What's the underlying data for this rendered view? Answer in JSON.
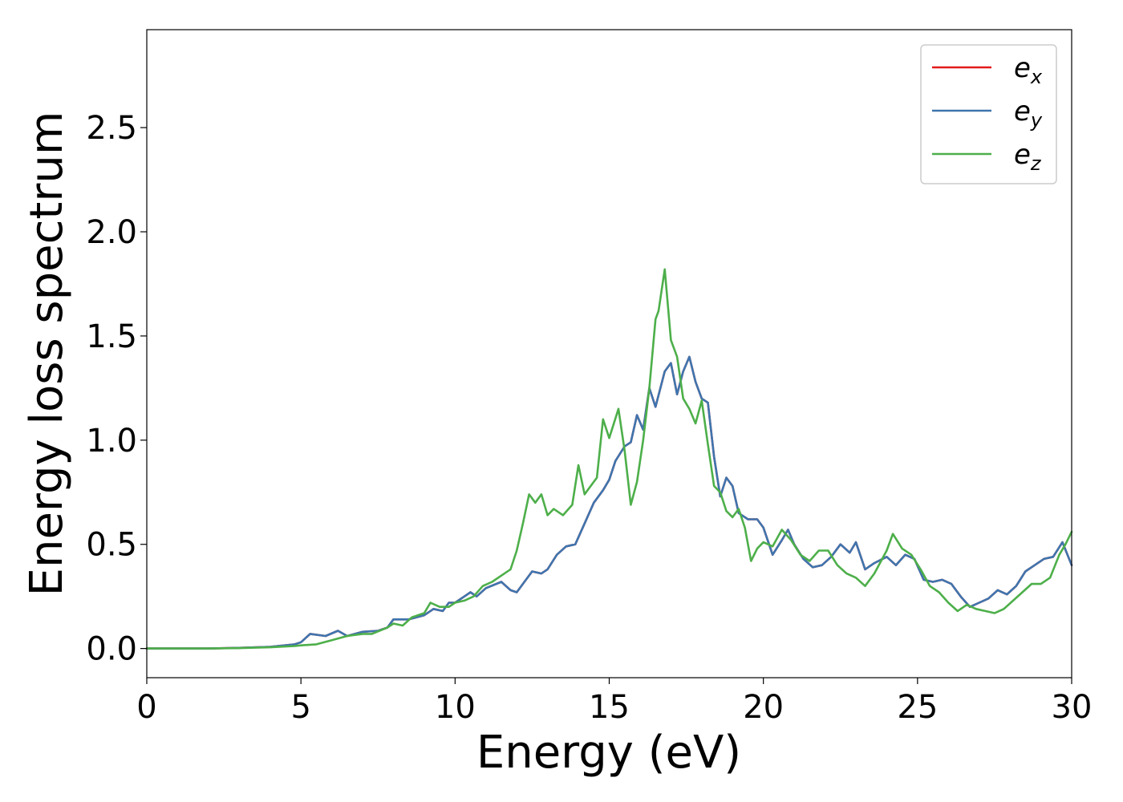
{
  "chart_data": {
    "type": "line",
    "title": "",
    "xlabel": "Energy (eV)",
    "ylabel": "Energy loss spectrum",
    "xlim": [
      0,
      30
    ],
    "ylim": [
      -0.14,
      2.97
    ],
    "xticks": [
      0,
      5,
      10,
      15,
      20,
      25,
      30
    ],
    "xtick_labels": [
      "0",
      "5",
      "10",
      "15",
      "20",
      "25",
      "30"
    ],
    "yticks": [
      0.0,
      0.5,
      1.0,
      1.5,
      2.0,
      2.5
    ],
    "ytick_labels": [
      "0.0",
      "0.5",
      "1.0",
      "1.5",
      "2.0",
      "2.5"
    ],
    "grid": false,
    "legend_position": "top-right",
    "series": [
      {
        "name": "e_x",
        "label_main": "e",
        "label_sub": "x",
        "color": "#e41a1c",
        "points": [
          [
            0,
            0.0
          ],
          [
            2,
            0.0
          ],
          [
            3,
            0.003
          ],
          [
            4,
            0.008
          ],
          [
            4.8,
            0.02
          ],
          [
            5.0,
            0.03
          ],
          [
            5.3,
            0.07
          ],
          [
            5.8,
            0.06
          ],
          [
            6.2,
            0.085
          ],
          [
            6.5,
            0.06
          ],
          [
            7.0,
            0.08
          ],
          [
            7.5,
            0.085
          ],
          [
            7.8,
            0.1
          ],
          [
            8.0,
            0.14
          ],
          [
            8.5,
            0.14
          ],
          [
            9.0,
            0.16
          ],
          [
            9.3,
            0.19
          ],
          [
            9.6,
            0.18
          ],
          [
            9.8,
            0.22
          ],
          [
            10.0,
            0.22
          ],
          [
            10.3,
            0.25
          ],
          [
            10.5,
            0.27
          ],
          [
            10.7,
            0.25
          ],
          [
            11.0,
            0.29
          ],
          [
            11.5,
            0.32
          ],
          [
            11.8,
            0.28
          ],
          [
            12.0,
            0.27
          ],
          [
            12.3,
            0.33
          ],
          [
            12.5,
            0.37
          ],
          [
            12.8,
            0.36
          ],
          [
            13.0,
            0.38
          ],
          [
            13.3,
            0.45
          ],
          [
            13.6,
            0.49
          ],
          [
            13.9,
            0.5
          ],
          [
            14.2,
            0.6
          ],
          [
            14.5,
            0.7
          ],
          [
            14.8,
            0.76
          ],
          [
            15.0,
            0.81
          ],
          [
            15.2,
            0.9
          ],
          [
            15.5,
            0.97
          ],
          [
            15.7,
            0.99
          ],
          [
            15.9,
            1.12
          ],
          [
            16.1,
            1.05
          ],
          [
            16.3,
            1.25
          ],
          [
            16.5,
            1.16
          ],
          [
            16.8,
            1.33
          ],
          [
            17.0,
            1.37
          ],
          [
            17.2,
            1.22
          ],
          [
            17.4,
            1.33
          ],
          [
            17.6,
            1.4
          ],
          [
            17.8,
            1.28
          ],
          [
            18.0,
            1.2
          ],
          [
            18.2,
            1.18
          ],
          [
            18.4,
            0.92
          ],
          [
            18.6,
            0.73
          ],
          [
            18.8,
            0.82
          ],
          [
            19.0,
            0.78
          ],
          [
            19.2,
            0.65
          ],
          [
            19.5,
            0.62
          ],
          [
            19.8,
            0.62
          ],
          [
            20.0,
            0.58
          ],
          [
            20.3,
            0.45
          ],
          [
            20.6,
            0.52
          ],
          [
            20.8,
            0.57
          ],
          [
            21.0,
            0.5
          ],
          [
            21.3,
            0.43
          ],
          [
            21.6,
            0.39
          ],
          [
            21.9,
            0.4
          ],
          [
            22.2,
            0.44
          ],
          [
            22.5,
            0.5
          ],
          [
            22.8,
            0.46
          ],
          [
            23.0,
            0.51
          ],
          [
            23.3,
            0.38
          ],
          [
            23.6,
            0.41
          ],
          [
            24.0,
            0.44
          ],
          [
            24.3,
            0.4
          ],
          [
            24.6,
            0.45
          ],
          [
            24.9,
            0.43
          ],
          [
            25.2,
            0.33
          ],
          [
            25.5,
            0.32
          ],
          [
            25.8,
            0.33
          ],
          [
            26.1,
            0.31
          ],
          [
            26.4,
            0.25
          ],
          [
            26.7,
            0.2
          ],
          [
            27.0,
            0.22
          ],
          [
            27.3,
            0.24
          ],
          [
            27.6,
            0.28
          ],
          [
            27.9,
            0.26
          ],
          [
            28.2,
            0.3
          ],
          [
            28.5,
            0.37
          ],
          [
            28.8,
            0.4
          ],
          [
            29.1,
            0.43
          ],
          [
            29.4,
            0.44
          ],
          [
            29.7,
            0.51
          ],
          [
            30.0,
            0.4
          ]
        ]
      },
      {
        "name": "e_y",
        "label_main": "e",
        "label_sub": "y",
        "color": "#3e75ae",
        "points": [
          [
            0,
            0.0
          ],
          [
            2,
            0.0
          ],
          [
            3,
            0.003
          ],
          [
            4,
            0.008
          ],
          [
            4.8,
            0.02
          ],
          [
            5.0,
            0.03
          ],
          [
            5.3,
            0.07
          ],
          [
            5.8,
            0.06
          ],
          [
            6.2,
            0.085
          ],
          [
            6.5,
            0.06
          ],
          [
            7.0,
            0.08
          ],
          [
            7.5,
            0.085
          ],
          [
            7.8,
            0.1
          ],
          [
            8.0,
            0.14
          ],
          [
            8.5,
            0.14
          ],
          [
            9.0,
            0.16
          ],
          [
            9.3,
            0.19
          ],
          [
            9.6,
            0.18
          ],
          [
            9.8,
            0.22
          ],
          [
            10.0,
            0.22
          ],
          [
            10.3,
            0.25
          ],
          [
            10.5,
            0.27
          ],
          [
            10.7,
            0.25
          ],
          [
            11.0,
            0.29
          ],
          [
            11.5,
            0.32
          ],
          [
            11.8,
            0.28
          ],
          [
            12.0,
            0.27
          ],
          [
            12.3,
            0.33
          ],
          [
            12.5,
            0.37
          ],
          [
            12.8,
            0.36
          ],
          [
            13.0,
            0.38
          ],
          [
            13.3,
            0.45
          ],
          [
            13.6,
            0.49
          ],
          [
            13.9,
            0.5
          ],
          [
            14.2,
            0.6
          ],
          [
            14.5,
            0.7
          ],
          [
            14.8,
            0.76
          ],
          [
            15.0,
            0.81
          ],
          [
            15.2,
            0.9
          ],
          [
            15.5,
            0.97
          ],
          [
            15.7,
            0.99
          ],
          [
            15.9,
            1.12
          ],
          [
            16.1,
            1.05
          ],
          [
            16.3,
            1.25
          ],
          [
            16.5,
            1.16
          ],
          [
            16.8,
            1.33
          ],
          [
            17.0,
            1.37
          ],
          [
            17.2,
            1.22
          ],
          [
            17.4,
            1.33
          ],
          [
            17.6,
            1.4
          ],
          [
            17.8,
            1.28
          ],
          [
            18.0,
            1.2
          ],
          [
            18.2,
            1.18
          ],
          [
            18.4,
            0.92
          ],
          [
            18.6,
            0.73
          ],
          [
            18.8,
            0.82
          ],
          [
            19.0,
            0.78
          ],
          [
            19.2,
            0.65
          ],
          [
            19.5,
            0.62
          ],
          [
            19.8,
            0.62
          ],
          [
            20.0,
            0.58
          ],
          [
            20.3,
            0.45
          ],
          [
            20.6,
            0.52
          ],
          [
            20.8,
            0.57
          ],
          [
            21.0,
            0.5
          ],
          [
            21.3,
            0.43
          ],
          [
            21.6,
            0.39
          ],
          [
            21.9,
            0.4
          ],
          [
            22.2,
            0.44
          ],
          [
            22.5,
            0.5
          ],
          [
            22.8,
            0.46
          ],
          [
            23.0,
            0.51
          ],
          [
            23.3,
            0.38
          ],
          [
            23.6,
            0.41
          ],
          [
            24.0,
            0.44
          ],
          [
            24.3,
            0.4
          ],
          [
            24.6,
            0.45
          ],
          [
            24.9,
            0.43
          ],
          [
            25.2,
            0.33
          ],
          [
            25.5,
            0.32
          ],
          [
            25.8,
            0.33
          ],
          [
            26.1,
            0.31
          ],
          [
            26.4,
            0.25
          ],
          [
            26.7,
            0.2
          ],
          [
            27.0,
            0.22
          ],
          [
            27.3,
            0.24
          ],
          [
            27.6,
            0.28
          ],
          [
            27.9,
            0.26
          ],
          [
            28.2,
            0.3
          ],
          [
            28.5,
            0.37
          ],
          [
            28.8,
            0.4
          ],
          [
            29.1,
            0.43
          ],
          [
            29.4,
            0.44
          ],
          [
            29.7,
            0.51
          ],
          [
            30.0,
            0.4
          ]
        ]
      },
      {
        "name": "e_z",
        "label_main": "e",
        "label_sub": "z",
        "color": "#4daf4a",
        "points": [
          [
            0,
            0.0
          ],
          [
            2,
            0.0
          ],
          [
            3,
            0.002
          ],
          [
            4,
            0.006
          ],
          [
            4.8,
            0.012
          ],
          [
            5.0,
            0.015
          ],
          [
            5.5,
            0.02
          ],
          [
            6.0,
            0.04
          ],
          [
            6.5,
            0.06
          ],
          [
            7.0,
            0.07
          ],
          [
            7.3,
            0.07
          ],
          [
            7.8,
            0.1
          ],
          [
            8.0,
            0.12
          ],
          [
            8.3,
            0.11
          ],
          [
            8.6,
            0.15
          ],
          [
            9.0,
            0.17
          ],
          [
            9.2,
            0.22
          ],
          [
            9.5,
            0.2
          ],
          [
            9.8,
            0.2
          ],
          [
            10.0,
            0.22
          ],
          [
            10.3,
            0.23
          ],
          [
            10.6,
            0.25
          ],
          [
            10.9,
            0.3
          ],
          [
            11.2,
            0.32
          ],
          [
            11.5,
            0.35
          ],
          [
            11.8,
            0.38
          ],
          [
            12.0,
            0.47
          ],
          [
            12.2,
            0.6
          ],
          [
            12.4,
            0.74
          ],
          [
            12.6,
            0.7
          ],
          [
            12.8,
            0.74
          ],
          [
            13.0,
            0.64
          ],
          [
            13.2,
            0.67
          ],
          [
            13.5,
            0.64
          ],
          [
            13.8,
            0.69
          ],
          [
            14.0,
            0.88
          ],
          [
            14.2,
            0.74
          ],
          [
            14.4,
            0.78
          ],
          [
            14.6,
            0.82
          ],
          [
            14.8,
            1.1
          ],
          [
            15.0,
            1.01
          ],
          [
            15.3,
            1.15
          ],
          [
            15.5,
            0.95
          ],
          [
            15.7,
            0.69
          ],
          [
            15.9,
            0.8
          ],
          [
            16.1,
            1.0
          ],
          [
            16.3,
            1.25
          ],
          [
            16.5,
            1.58
          ],
          [
            16.6,
            1.62
          ],
          [
            16.8,
            1.82
          ],
          [
            17.0,
            1.48
          ],
          [
            17.2,
            1.4
          ],
          [
            17.4,
            1.2
          ],
          [
            17.6,
            1.15
          ],
          [
            17.8,
            1.08
          ],
          [
            18.0,
            1.19
          ],
          [
            18.2,
            0.98
          ],
          [
            18.4,
            0.78
          ],
          [
            18.6,
            0.75
          ],
          [
            18.8,
            0.66
          ],
          [
            19.0,
            0.63
          ],
          [
            19.2,
            0.67
          ],
          [
            19.4,
            0.58
          ],
          [
            19.6,
            0.42
          ],
          [
            19.8,
            0.48
          ],
          [
            20.0,
            0.51
          ],
          [
            20.3,
            0.49
          ],
          [
            20.6,
            0.57
          ],
          [
            20.9,
            0.52
          ],
          [
            21.2,
            0.45
          ],
          [
            21.5,
            0.42
          ],
          [
            21.8,
            0.47
          ],
          [
            22.1,
            0.47
          ],
          [
            22.4,
            0.4
          ],
          [
            22.7,
            0.36
          ],
          [
            23.0,
            0.34
          ],
          [
            23.3,
            0.3
          ],
          [
            23.6,
            0.36
          ],
          [
            24.0,
            0.47
          ],
          [
            24.2,
            0.55
          ],
          [
            24.5,
            0.48
          ],
          [
            24.8,
            0.45
          ],
          [
            25.1,
            0.38
          ],
          [
            25.4,
            0.3
          ],
          [
            25.7,
            0.27
          ],
          [
            26.0,
            0.22
          ],
          [
            26.3,
            0.18
          ],
          [
            26.6,
            0.21
          ],
          [
            26.9,
            0.19
          ],
          [
            27.2,
            0.18
          ],
          [
            27.5,
            0.17
          ],
          [
            27.8,
            0.19
          ],
          [
            28.1,
            0.23
          ],
          [
            28.4,
            0.27
          ],
          [
            28.7,
            0.31
          ],
          [
            29.0,
            0.31
          ],
          [
            29.3,
            0.34
          ],
          [
            29.6,
            0.45
          ],
          [
            29.8,
            0.5
          ],
          [
            30.0,
            0.56
          ]
        ]
      }
    ]
  }
}
